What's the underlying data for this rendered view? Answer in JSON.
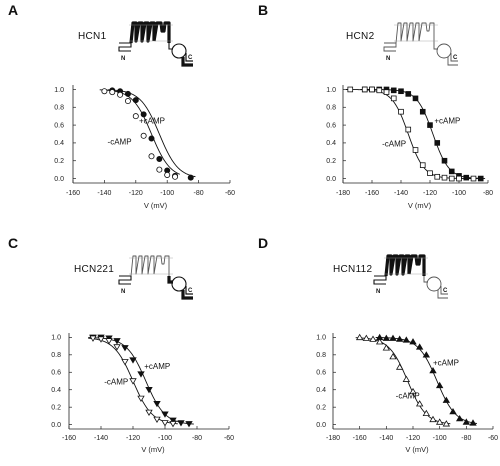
{
  "chart_data": [
    {
      "panel": "A",
      "type": "scatter",
      "channel": "HCN1",
      "channel_style": "filled",
      "xlabel": "V (mV)",
      "ylabel": "",
      "xlim": [
        -160,
        -60
      ],
      "ylim": [
        -0.05,
        1.05
      ],
      "xticks": [
        "-160",
        "-140",
        "-120",
        "-100",
        "-80",
        "-60"
      ],
      "yticks": [
        "0.0",
        "0.2",
        "0.4",
        "0.6",
        "0.8",
        "1.0"
      ],
      "marker_fill": "#111111",
      "marker_shape": "circle",
      "grid": false,
      "series": [
        {
          "name": "+cAMP",
          "filled": true,
          "v_half": -105,
          "slope": 6,
          "x": [
            -135,
            -130,
            -125,
            -120,
            -115,
            -110,
            -105,
            -100,
            -95,
            -85
          ],
          "y": [
            0.99,
            0.98,
            0.95,
            0.88,
            0.72,
            0.45,
            0.22,
            0.09,
            0.03,
            0.01
          ]
        },
        {
          "name": "-cAMP",
          "filled": false,
          "v_half": -110,
          "slope": 6,
          "x": [
            -140,
            -135,
            -130,
            -125,
            -120,
            -115,
            -110,
            -105,
            -100,
            -95
          ],
          "y": [
            0.98,
            0.97,
            0.94,
            0.87,
            0.7,
            0.48,
            0.25,
            0.1,
            0.04,
            0.02
          ]
        }
      ],
      "annotations": [
        {
          "text": "+cAMP",
          "x": -118,
          "y": 0.62
        },
        {
          "text": "-cAMP",
          "x": -138,
          "y": 0.38
        }
      ]
    },
    {
      "panel": "B",
      "type": "scatter",
      "channel": "HCN2",
      "channel_style": "open",
      "xlabel": "V (mV)",
      "ylabel": "",
      "xlim": [
        -180,
        -80
      ],
      "ylim": [
        -0.05,
        1.05
      ],
      "xticks": [
        "-180",
        "-160",
        "-140",
        "-120",
        "-100",
        "-80"
      ],
      "yticks": [
        "0.0",
        "0.2",
        "0.4",
        "0.6",
        "0.8",
        "1.0"
      ],
      "marker_fill": "#111111",
      "marker_shape": "square",
      "grid": false,
      "series": [
        {
          "name": "+cAMP",
          "filled": true,
          "v_half": -118,
          "slope": 5.5,
          "x": [
            -165,
            -160,
            -155,
            -150,
            -145,
            -140,
            -135,
            -130,
            -125,
            -120,
            -115,
            -110,
            -105,
            -100,
            -95,
            -85
          ],
          "y": [
            1.0,
            1.0,
            1.0,
            1.0,
            0.99,
            0.98,
            0.95,
            0.9,
            0.75,
            0.6,
            0.4,
            0.2,
            0.08,
            0.03,
            0.01,
            0.0
          ]
        },
        {
          "name": "-cAMP",
          "filled": false,
          "v_half": -135,
          "slope": 5.5,
          "x": [
            -175,
            -165,
            -160,
            -155,
            -150,
            -145,
            -140,
            -135,
            -130,
            -125,
            -120,
            -115,
            -110,
            -105,
            -100,
            -90
          ],
          "y": [
            1.0,
            1.0,
            1.0,
            0.99,
            0.97,
            0.9,
            0.75,
            0.55,
            0.32,
            0.15,
            0.06,
            0.02,
            0.01,
            0.0,
            0.0,
            0.0
          ]
        }
      ],
      "annotations": [
        {
          "text": "+cAMP",
          "x": -117,
          "y": 0.62
        },
        {
          "text": "-cAMP",
          "x": -153,
          "y": 0.36
        }
      ]
    },
    {
      "panel": "C",
      "type": "scatter",
      "channel": "HCN221",
      "channel_style": "mixed-A",
      "xlabel": "V (mV)",
      "ylabel": "",
      "xlim": [
        -160,
        -60
      ],
      "ylim": [
        -0.05,
        1.05
      ],
      "xticks": [
        "-160",
        "-140",
        "-120",
        "-100",
        "-80",
        "-60"
      ],
      "yticks": [
        "0.0",
        "0.2",
        "0.4",
        "0.6",
        "0.8",
        "1.0"
      ],
      "marker_fill": "#111111",
      "marker_shape": "triangle-down",
      "grid": false,
      "series": [
        {
          "name": "+cAMP",
          "filled": true,
          "v_half": -112,
          "slope": 6,
          "x": [
            -145,
            -140,
            -135,
            -130,
            -125,
            -120,
            -115,
            -110,
            -105,
            -100,
            -95,
            -90,
            -85
          ],
          "y": [
            1.0,
            1.0,
            0.99,
            0.96,
            0.88,
            0.74,
            0.58,
            0.4,
            0.24,
            0.12,
            0.05,
            0.02,
            0.01
          ]
        },
        {
          "name": "-cAMP",
          "filled": false,
          "v_half": -120,
          "slope": 6,
          "x": [
            -145,
            -140,
            -135,
            -130,
            -125,
            -120,
            -115,
            -110,
            -105,
            -100,
            -95
          ],
          "y": [
            0.99,
            0.98,
            0.96,
            0.89,
            0.72,
            0.5,
            0.3,
            0.14,
            0.06,
            0.02,
            0.01
          ]
        }
      ],
      "annotations": [
        {
          "text": "+cAMP",
          "x": -113,
          "y": 0.64
        },
        {
          "text": "-cAMP",
          "x": -138,
          "y": 0.46
        }
      ]
    },
    {
      "panel": "D",
      "type": "scatter",
      "channel": "HCN112",
      "channel_style": "mixed-B",
      "xlabel": "V (mV)",
      "ylabel": "",
      "xlim": [
        -180,
        -60
      ],
      "ylim": [
        -0.05,
        1.05
      ],
      "xticks": [
        "-180",
        "-160",
        "-140",
        "-120",
        "-100",
        "-80",
        "-60"
      ],
      "yticks": [
        "0.0",
        "0.2",
        "0.4",
        "0.6",
        "0.8",
        "1.0"
      ],
      "marker_fill": "#111111",
      "marker_shape": "triangle-up",
      "grid": false,
      "series": [
        {
          "name": "+cAMP",
          "filled": true,
          "v_half": -102,
          "slope": 7,
          "x": [
            -145,
            -140,
            -135,
            -130,
            -125,
            -120,
            -115,
            -110,
            -105,
            -100,
            -95,
            -90,
            -85,
            -80,
            -75
          ],
          "y": [
            1.0,
            0.99,
            0.99,
            0.98,
            0.97,
            0.95,
            0.89,
            0.8,
            0.62,
            0.45,
            0.28,
            0.15,
            0.07,
            0.03,
            0.02
          ]
        },
        {
          "name": "-cAMP",
          "filled": false,
          "v_half": -124,
          "slope": 7,
          "x": [
            -160,
            -155,
            -150,
            -145,
            -140,
            -135,
            -130,
            -125,
            -120,
            -115,
            -110,
            -105,
            -100,
            -95
          ],
          "y": [
            1.0,
            0.99,
            0.98,
            0.95,
            0.88,
            0.78,
            0.66,
            0.52,
            0.38,
            0.24,
            0.13,
            0.06,
            0.03,
            0.01
          ]
        }
      ],
      "annotations": [
        {
          "text": "+cAMP",
          "x": -105,
          "y": 0.68
        },
        {
          "text": "-cAMP",
          "x": -133,
          "y": 0.3
        }
      ]
    }
  ]
}
